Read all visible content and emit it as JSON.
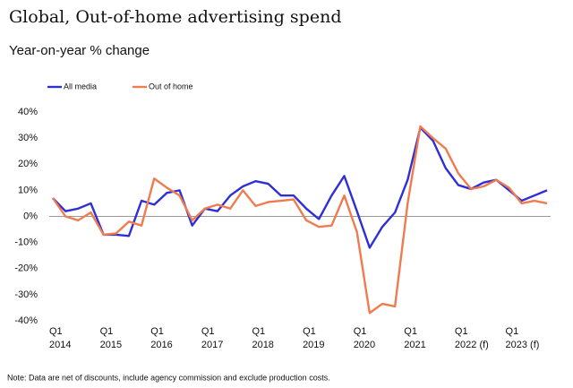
{
  "chart_data": {
    "type": "line",
    "title": "Global, Out-of-home advertising spend",
    "subtitle": "Year-on-year % change",
    "note": "Note: Data are net of discounts, include agency commission and exclude production costs.",
    "categories": [
      [
        "Q1",
        "2014"
      ],
      null,
      null,
      null,
      [
        "Q1",
        "2015"
      ],
      null,
      null,
      null,
      [
        "Q1",
        "2016"
      ],
      null,
      null,
      null,
      [
        "Q1",
        "2017"
      ],
      null,
      null,
      null,
      [
        "Q1",
        "2018"
      ],
      null,
      null,
      null,
      [
        "Q1",
        "2019"
      ],
      null,
      null,
      null,
      [
        "Q1",
        "2020"
      ],
      null,
      null,
      null,
      [
        "Q1",
        "2021"
      ],
      null,
      null,
      null,
      [
        "Q1",
        "2022 (f)"
      ],
      null,
      null,
      null,
      [
        "Q1",
        "2023 (f)"
      ],
      null,
      null,
      null
    ],
    "series": [
      {
        "name": "All media",
        "color": "#2e2fd4",
        "values": [
          7,
          2,
          3,
          5,
          -7,
          -7,
          -7.5,
          6,
          4.5,
          9,
          10,
          -3.5,
          3,
          2,
          8,
          11.5,
          13.5,
          12.5,
          8,
          8,
          3,
          -1,
          8,
          15.5,
          2,
          -12,
          -4,
          1.5,
          14,
          34,
          29,
          18.5,
          12,
          10.5,
          13,
          14,
          10,
          6,
          8,
          10
        ]
      },
      {
        "name": "Out of home",
        "color": "#ef7b4e",
        "values": [
          7,
          0,
          -1.5,
          1.5,
          -7,
          -6.5,
          -2,
          -3.5,
          14.5,
          11,
          8,
          -1.5,
          3,
          4.5,
          3,
          10,
          4,
          5.5,
          6,
          6.5,
          -1.5,
          -4,
          -3.5,
          8,
          -6,
          -37,
          -33.5,
          -34.5,
          5,
          34.5,
          30,
          26,
          16.5,
          10.5,
          11.5,
          14,
          11,
          5,
          6,
          5
        ]
      }
    ],
    "ylim": [
      -40,
      40
    ],
    "yticks": [
      {
        "value": 40,
        "label": "40%"
      },
      {
        "value": 30,
        "label": "30%"
      },
      {
        "value": 20,
        "label": "20%"
      },
      {
        "value": 10,
        "label": "10%"
      },
      {
        "value": 0,
        "label": "0%"
      },
      {
        "value": -10,
        "label": "-10%"
      },
      {
        "value": -20,
        "label": "-20%"
      },
      {
        "value": -30,
        "label": "-30%"
      },
      {
        "value": -40,
        "label": "-40%"
      }
    ],
    "legend": "top-left"
  }
}
